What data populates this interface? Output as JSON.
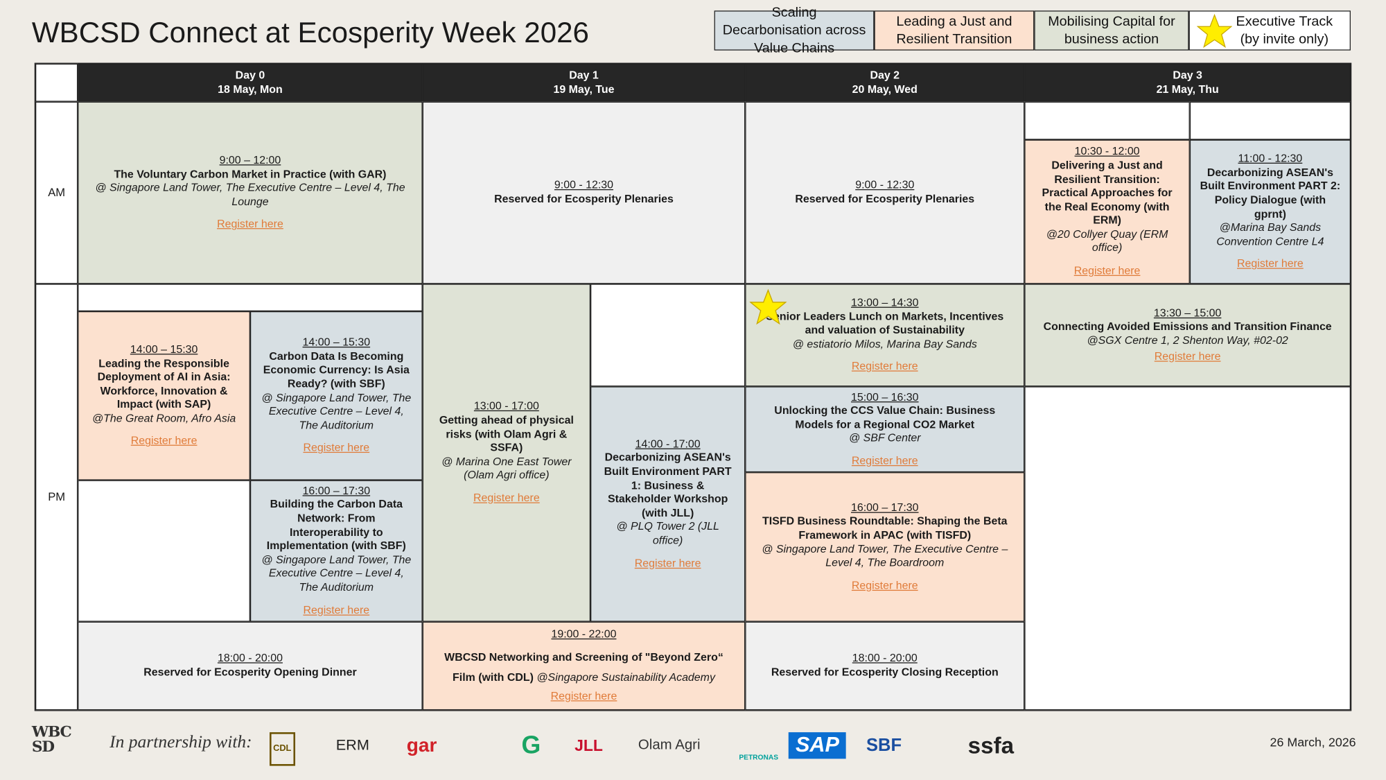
{
  "header": {
    "title": "WBCSD Connect at Ecosperity Week 2026"
  },
  "legend": [
    {
      "text": "Scaling Decarbonisation across Value Chains",
      "color": "#d7dfe3"
    },
    {
      "text": "Leading a Just and Resilient Transition",
      "color": "#fce1cf"
    },
    {
      "text": "Mobilising Capital for business action",
      "color": "#dfe3d6"
    },
    {
      "text": "Executive Track (by invite only)",
      "color": "#ffffff"
    }
  ],
  "days": [
    {
      "day": "Day 0",
      "date": "18 May, Mon"
    },
    {
      "day": "Day 1",
      "date": "19 May, Tue"
    },
    {
      "day": "Day 2",
      "date": "20 May, Wed"
    },
    {
      "day": "Day 3",
      "date": "21 May, Thu"
    }
  ],
  "rows": [
    "AM",
    "PM"
  ],
  "sessions": [
    {
      "time": "9:00 – 12:00",
      "title": "The Voluntary Carbon Market in Practice (with GAR)",
      "location": "@ Singapore Land Tower, The Executive Centre – Level 4, The Lounge",
      "link": "Register here",
      "color": "#dfe3d6"
    },
    {
      "time": "9:00 - 12:30",
      "title": "Reserved for Ecosperity Plenaries",
      "color": "#f0f0f0"
    },
    {
      "time": "9:00 - 12:30",
      "title": "Reserved for Ecosperity Plenaries",
      "color": "#f0f0f0"
    },
    {
      "time": "10:30 - 12:00",
      "title": "Delivering a Just and Resilient Transition: Practical Approaches for the Real Economy (with ERM)",
      "location": "@20 Collyer Quay (ERM office)",
      "link": "Register here",
      "color": "#fce1cf"
    },
    {
      "time": "11:00 - 12:30",
      "title": "Decarbonizing ASEAN's Built Environment PART 2: Policy Dialogue (with gprnt)",
      "location": "@Marina Bay Sands Convention Centre L4",
      "link": "Register here",
      "color": "#d7dfe3"
    },
    {
      "time": "14:00 – 15:30",
      "title": "Leading the Responsible Deployment of AI in Asia: Workforce, Innovation & Impact (with SAP)",
      "location": "@The Great Room, Afro Asia",
      "link": "Register here",
      "color": "#fce1cf"
    },
    {
      "time": "14:00 – 15:30",
      "title": "Carbon Data Is Becoming Economic Currency: Is Asia Ready? (with SBF)",
      "location": "@ Singapore Land Tower, The Executive Centre – Level 4, The Auditorium",
      "link": "Register here",
      "color": "#d7dfe3"
    },
    {
      "time": "16:00 – 17:30",
      "title": "Building the Carbon Data Network: From Interoperability to Implementation (with SBF)",
      "location": "@ Singapore Land Tower, The Executive Centre – Level 4, The Auditorium",
      "link": "Register here",
      "color": "#d7dfe3"
    },
    {
      "time": "18:00 - 20:00",
      "title": "Reserved for Ecosperity Opening Dinner",
      "color": "#f0f0f0"
    },
    {
      "time": "13:00 - 17:00",
      "title": "Getting ahead of physical risks (with Olam Agri & SSFA)",
      "location": "@ Marina One East Tower (Olam Agri office)",
      "link": "Register here",
      "color": "#dfe3d6"
    },
    {
      "time": "14:00 - 17:00",
      "title": "Decarbonizing ASEAN's Built Environment PART 1: Business & Stakeholder Workshop (with JLL)",
      "location": "@ PLQ Tower 2 (JLL office)",
      "link": "Register here",
      "color": "#d7dfe3"
    },
    {
      "time": "19:00 - 22:00",
      "title": "WBCSD Networking and Screening of \"Beyond Zero“ Film (with CDL)",
      "location": "@Singapore Sustainability Academy",
      "link": "Register here",
      "color": "#fce1cf"
    },
    {
      "time": "13:00 – 14:30",
      "title": "Senior Leaders Lunch on Markets, Incentives and valuation of Sustainability",
      "location": "@ estiatorio Milos, Marina Bay Sands",
      "link": "Register here",
      "color": "#dfe3d6",
      "executive": true
    },
    {
      "time": "15:00 – 16:30",
      "title": "Unlocking the CCS Value Chain: Business Models for a Regional CO2 Market",
      "location": "@ SBF Center",
      "link": "Register here",
      "color": "#d7dfe3"
    },
    {
      "time": "16:00 – 17:30",
      "title": "TISFD Business Roundtable: Shaping the Beta Framework in APAC (with TISFD)",
      "location": "@ Singapore Land Tower, The Executive Centre – Level 4, The Boardroom",
      "link": "Register here",
      "color": "#fce1cf"
    },
    {
      "time": "18:00 - 20:00",
      "title": "Reserved for Ecosperity Closing Reception",
      "color": "#f0f0f0"
    },
    {
      "time": "13:30 – 15:00",
      "title": "Connecting Avoided Emissions and Transition Finance",
      "location": "@SGX Centre 1, 2 Shenton Way, #02-02",
      "link": "Register here",
      "color": "#dfe3d6"
    }
  ],
  "footer": {
    "logo": "WBCSD",
    "partnership": "In partnership with:",
    "partners": [
      "CDL",
      "ERM",
      "gar",
      "G",
      "JLL",
      "Olam Agri",
      "PETRONAS",
      "SAP",
      "SBF",
      "ssfa"
    ],
    "date": "26 March, 2026"
  }
}
